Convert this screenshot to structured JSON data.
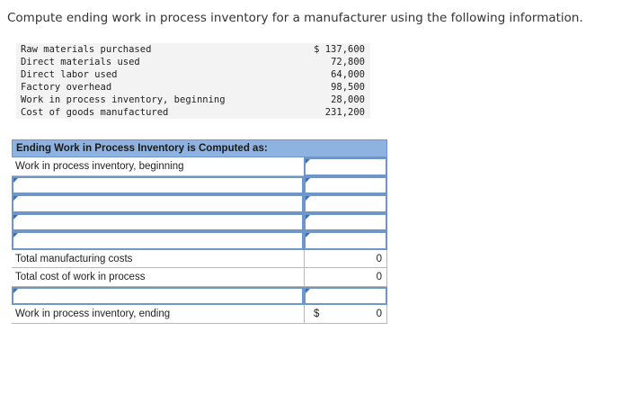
{
  "question": "Compute ending work in process inventory for a manufacturer using the following information.",
  "givens": [
    {
      "label": "Raw materials purchased",
      "value": "$ 137,600"
    },
    {
      "label": "Direct materials used",
      "value": "72,800"
    },
    {
      "label": "Direct labor used",
      "value": "64,000"
    },
    {
      "label": "Factory overhead",
      "value": "98,500"
    },
    {
      "label": "Work in process inventory, beginning",
      "value": "28,000"
    },
    {
      "label": "Cost of goods manufactured",
      "value": "231,200"
    }
  ],
  "worksheet": {
    "header": "Ending Work in Process Inventory is Computed as:",
    "beginning_label": "Work in process inventory, beginning",
    "total_mfg_label": "Total manufacturing costs",
    "total_mfg_value": "0",
    "total_cost_label": "Total cost of work in process",
    "total_cost_value": "0",
    "ending_label": "Work in process inventory, ending",
    "ending_currency": "$",
    "ending_value": "0"
  }
}
